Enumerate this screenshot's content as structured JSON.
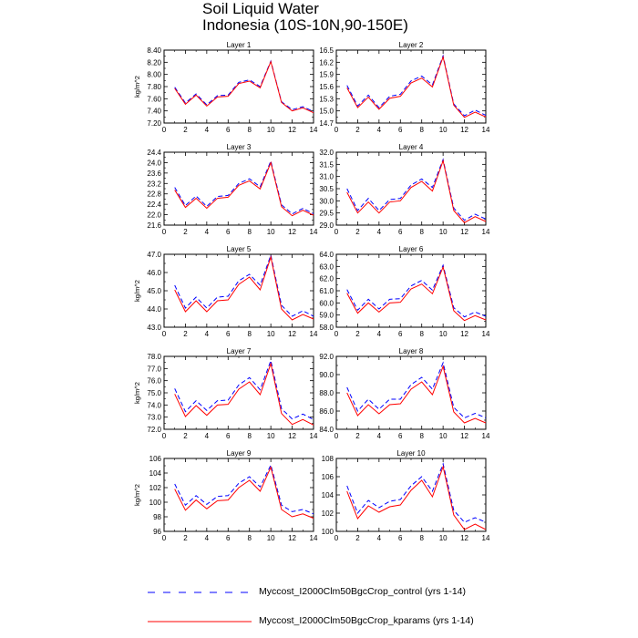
{
  "figure": {
    "title_line1": "Soil Liquid Water",
    "title_line2": "Indonesia (10S-10N,90-150E)"
  },
  "legend": {
    "entries": [
      {
        "label": "Myccost_I2000Clm50BgcCrop_control (yrs 1-14)",
        "color": "#0000ff",
        "style": "dashed"
      },
      {
        "label": "Myccost_I2000Clm50BgcCrop_kparams (yrs 1-14)",
        "color": "#ff0000",
        "style": "solid"
      }
    ]
  },
  "chart_data": [
    {
      "type": "line",
      "title": "Layer 1",
      "ylabel": "kg/m^2",
      "xlabel": "",
      "x": [
        1,
        2,
        3,
        4,
        5,
        6,
        7,
        8,
        9,
        10,
        11,
        12,
        13,
        14
      ],
      "xlim": [
        0,
        14
      ],
      "xticks": [
        "0",
        "2",
        "4",
        "6",
        "8",
        "10",
        "12",
        "14"
      ],
      "ylim": [
        7.2,
        8.4
      ],
      "yticks": [
        "7.20",
        "7.40",
        "7.60",
        "7.80",
        "8.00",
        "8.20",
        "8.40"
      ],
      "series": [
        {
          "name": "Myccost_I2000Clm50BgcCrop_control (yrs 1-14)",
          "values": [
            7.79,
            7.53,
            7.68,
            7.5,
            7.65,
            7.66,
            7.87,
            7.91,
            7.8,
            8.22,
            7.55,
            7.42,
            7.47,
            7.39
          ]
        },
        {
          "name": "Myccost_I2000Clm50BgcCrop_kparams (yrs 1-14)",
          "values": [
            7.77,
            7.51,
            7.66,
            7.48,
            7.63,
            7.64,
            7.85,
            7.89,
            7.78,
            8.21,
            7.54,
            7.4,
            7.45,
            7.37
          ]
        }
      ]
    },
    {
      "type": "line",
      "title": "Layer 2",
      "ylabel": "",
      "xlabel": "",
      "x": [
        1,
        2,
        3,
        4,
        5,
        6,
        7,
        8,
        9,
        10,
        11,
        12,
        13,
        14
      ],
      "xlim": [
        0,
        14
      ],
      "xticks": [
        "0",
        "2",
        "4",
        "6",
        "8",
        "10",
        "12",
        "14"
      ],
      "ylim": [
        14.7,
        16.5
      ],
      "yticks": [
        "14.7",
        "15.0",
        "15.3",
        "15.6",
        "15.9",
        "16.2",
        "16.5"
      ],
      "series": [
        {
          "name": "Myccost_I2000Clm50BgcCrop_control (yrs 1-14)",
          "values": [
            15.63,
            15.12,
            15.39,
            15.08,
            15.36,
            15.41,
            15.74,
            15.86,
            15.64,
            16.36,
            15.17,
            14.88,
            15.02,
            14.89
          ]
        },
        {
          "name": "Myccost_I2000Clm50BgcCrop_kparams (yrs 1-14)",
          "values": [
            15.57,
            15.08,
            15.34,
            15.04,
            15.31,
            15.36,
            15.69,
            15.81,
            15.59,
            16.33,
            15.14,
            14.84,
            14.97,
            14.85
          ]
        }
      ]
    },
    {
      "type": "line",
      "title": "Layer 3",
      "ylabel": "",
      "xlabel": "",
      "x": [
        1,
        2,
        3,
        4,
        5,
        6,
        7,
        8,
        9,
        10,
        11,
        12,
        13,
        14
      ],
      "xlim": [
        0,
        14
      ],
      "xticks": [
        "0",
        "2",
        "4",
        "6",
        "8",
        "10",
        "12",
        "14"
      ],
      "ylim": [
        21.6,
        24.4
      ],
      "yticks": [
        "21.6",
        "22.0",
        "22.4",
        "22.8",
        "23.2",
        "23.6",
        "24.0",
        "24.4"
      ],
      "series": [
        {
          "name": "Myccost_I2000Clm50BgcCrop_control (yrs 1-14)",
          "values": [
            23.05,
            22.35,
            22.72,
            22.32,
            22.7,
            22.74,
            23.2,
            23.38,
            23.07,
            24.06,
            22.38,
            22.03,
            22.24,
            22.04
          ]
        },
        {
          "name": "Myccost_I2000Clm50BgcCrop_kparams (yrs 1-14)",
          "values": [
            22.95,
            22.28,
            22.63,
            22.25,
            22.63,
            22.67,
            23.13,
            23.3,
            22.99,
            24.0,
            22.31,
            21.96,
            22.17,
            21.98
          ]
        }
      ]
    },
    {
      "type": "line",
      "title": "Layer 4",
      "ylabel": "",
      "xlabel": "",
      "x": [
        1,
        2,
        3,
        4,
        5,
        6,
        7,
        8,
        9,
        10,
        11,
        12,
        13,
        14
      ],
      "xlim": [
        0,
        14
      ],
      "xticks": [
        "0",
        "2",
        "4",
        "6",
        "8",
        "10",
        "12",
        "14"
      ],
      "ylim": [
        29.0,
        32.0
      ],
      "yticks": [
        "29.0",
        "29.5",
        "30.0",
        "30.5",
        "31.0",
        "31.5",
        "32.0"
      ],
      "series": [
        {
          "name": "Myccost_I2000Clm50BgcCrop_control (yrs 1-14)",
          "values": [
            30.5,
            29.6,
            30.1,
            29.6,
            30.05,
            30.1,
            30.65,
            30.9,
            30.55,
            31.7,
            29.7,
            29.2,
            29.45,
            29.25
          ]
        },
        {
          "name": "Myccost_I2000Clm50BgcCrop_kparams (yrs 1-14)",
          "values": [
            30.35,
            29.5,
            29.95,
            29.5,
            29.95,
            30.0,
            30.55,
            30.8,
            30.4,
            31.65,
            29.6,
            29.1,
            29.35,
            29.15
          ]
        }
      ]
    },
    {
      "type": "line",
      "title": "Layer 5",
      "ylabel": "kg/m^2",
      "xlabel": "",
      "x": [
        1,
        2,
        3,
        4,
        5,
        6,
        7,
        8,
        9,
        10,
        11,
        12,
        13,
        14
      ],
      "xlim": [
        0,
        14
      ],
      "xticks": [
        "0",
        "2",
        "4",
        "6",
        "8",
        "10",
        "12",
        "14"
      ],
      "ylim": [
        43.0,
        47.0
      ],
      "yticks": [
        "43.0",
        "44.0",
        "45.0",
        "46.0",
        "47.0"
      ],
      "series": [
        {
          "name": "Myccost_I2000Clm50BgcCrop_control (yrs 1-14)",
          "values": [
            45.3,
            44.05,
            44.65,
            44.05,
            44.65,
            44.7,
            45.55,
            45.9,
            45.3,
            46.95,
            44.2,
            43.6,
            43.9,
            43.6
          ]
        },
        {
          "name": "Myccost_I2000Clm50BgcCrop_kparams (yrs 1-14)",
          "values": [
            45.05,
            43.85,
            44.45,
            43.85,
            44.45,
            44.5,
            45.35,
            45.75,
            45.05,
            46.85,
            44.0,
            43.4,
            43.7,
            43.45
          ]
        }
      ]
    },
    {
      "type": "line",
      "title": "Layer 6",
      "ylabel": "",
      "xlabel": "",
      "x": [
        1,
        2,
        3,
        4,
        5,
        6,
        7,
        8,
        9,
        10,
        11,
        12,
        13,
        14
      ],
      "xlim": [
        0,
        14
      ],
      "xticks": [
        "0",
        "2",
        "4",
        "6",
        "8",
        "10",
        "12",
        "14"
      ],
      "ylim": [
        58.0,
        64.0
      ],
      "yticks": [
        "58.0",
        "59.0",
        "60.0",
        "61.0",
        "62.0",
        "63.0",
        "64.0"
      ],
      "series": [
        {
          "name": "Myccost_I2000Clm50BgcCrop_control (yrs 1-14)",
          "values": [
            61.1,
            59.4,
            60.3,
            59.5,
            60.3,
            60.35,
            61.4,
            61.85,
            61.05,
            63.1,
            59.6,
            58.85,
            59.25,
            58.9
          ]
        },
        {
          "name": "Myccost_I2000Clm50BgcCrop_kparams (yrs 1-14)",
          "values": [
            60.8,
            59.15,
            60.0,
            59.25,
            60.0,
            60.05,
            61.15,
            61.55,
            60.75,
            62.95,
            59.35,
            58.55,
            58.95,
            58.6
          ]
        }
      ]
    },
    {
      "type": "line",
      "title": "Layer 7",
      "ylabel": "kg/m^2",
      "xlabel": "",
      "x": [
        1,
        2,
        3,
        4,
        5,
        6,
        7,
        8,
        9,
        10,
        11,
        12,
        13,
        14
      ],
      "xlim": [
        0,
        14
      ],
      "xticks": [
        "0",
        "2",
        "4",
        "6",
        "8",
        "10",
        "12",
        "14"
      ],
      "ylim": [
        72.0,
        78.0
      ],
      "yticks": [
        "72.0",
        "73.0",
        "74.0",
        "75.0",
        "76.0",
        "77.0",
        "78.0"
      ],
      "series": [
        {
          "name": "Myccost_I2000Clm50BgcCrop_control (yrs 1-14)",
          "values": [
            75.35,
            73.45,
            74.35,
            73.55,
            74.35,
            74.4,
            75.65,
            76.25,
            75.25,
            77.65,
            73.7,
            72.85,
            73.25,
            72.8
          ]
        },
        {
          "name": "Myccost_I2000Clm50BgcCrop_kparams (yrs 1-14)",
          "values": [
            74.9,
            73.05,
            73.95,
            73.15,
            74.0,
            74.05,
            75.3,
            75.9,
            74.85,
            77.4,
            73.3,
            72.4,
            72.8,
            72.35
          ]
        }
      ]
    },
    {
      "type": "line",
      "title": "Layer 8",
      "ylabel": "",
      "xlabel": "",
      "x": [
        1,
        2,
        3,
        4,
        5,
        6,
        7,
        8,
        9,
        10,
        11,
        12,
        13,
        14
      ],
      "xlim": [
        0,
        14
      ],
      "xticks": [
        "0",
        "2",
        "4",
        "6",
        "8",
        "10",
        "12",
        "14"
      ],
      "ylim": [
        84.0,
        92.0
      ],
      "yticks": [
        "84.0",
        "86.0",
        "88.0",
        "90.0",
        "92.0"
      ],
      "series": [
        {
          "name": "Myccost_I2000Clm50BgcCrop_control (yrs 1-14)",
          "values": [
            88.6,
            86.0,
            87.3,
            86.2,
            87.3,
            87.3,
            88.9,
            89.7,
            88.4,
            91.3,
            86.4,
            85.25,
            85.75,
            85.25
          ]
        },
        {
          "name": "Myccost_I2000Clm50BgcCrop_kparams (yrs 1-14)",
          "values": [
            88.0,
            85.5,
            86.7,
            85.7,
            86.7,
            86.8,
            88.4,
            89.2,
            87.8,
            90.9,
            85.9,
            84.7,
            85.2,
            84.7
          ]
        }
      ]
    },
    {
      "type": "line",
      "title": "Layer 9",
      "ylabel": "kg/m^2",
      "xlabel": "",
      "x": [
        1,
        2,
        3,
        4,
        5,
        6,
        7,
        8,
        9,
        10,
        11,
        12,
        13,
        14
      ],
      "xlim": [
        0,
        14
      ],
      "xticks": [
        "0",
        "2",
        "4",
        "6",
        "8",
        "10",
        "12",
        "14"
      ],
      "ylim": [
        96,
        106
      ],
      "yticks": [
        "96",
        "98",
        "100",
        "102",
        "104",
        "106"
      ],
      "series": [
        {
          "name": "Myccost_I2000Clm50BgcCrop_control (yrs 1-14)",
          "values": [
            102.5,
            99.6,
            100.9,
            99.7,
            100.8,
            100.9,
            102.6,
            103.5,
            102.1,
            105.1,
            99.6,
            98.7,
            99.0,
            98.4
          ]
        },
        {
          "name": "Myccost_I2000Clm50BgcCrop_kparams (yrs 1-14)",
          "values": [
            101.8,
            98.9,
            100.3,
            99.1,
            100.2,
            100.3,
            102.0,
            103.0,
            101.5,
            104.8,
            99.0,
            98.0,
            98.4,
            97.8
          ]
        }
      ]
    },
    {
      "type": "line",
      "title": "Layer 10",
      "ylabel": "",
      "xlabel": "",
      "x": [
        1,
        2,
        3,
        4,
        5,
        6,
        7,
        8,
        9,
        10,
        11,
        12,
        13,
        14
      ],
      "xlim": [
        0,
        14
      ],
      "xticks": [
        "0",
        "2",
        "4",
        "6",
        "8",
        "10",
        "12",
        "14"
      ],
      "ylim": [
        100,
        108
      ],
      "yticks": [
        "100",
        "102",
        "104",
        "106",
        "108"
      ],
      "series": [
        {
          "name": "Myccost_I2000Clm50BgcCrop_control (yrs 1-14)",
          "values": [
            105.0,
            102.0,
            103.4,
            102.6,
            103.3,
            103.5,
            105.0,
            106.0,
            104.4,
            107.4,
            102.3,
            101.0,
            101.5,
            101.0
          ]
        },
        {
          "name": "Myccost_I2000Clm50BgcCrop_kparams (yrs 1-14)",
          "values": [
            104.4,
            101.4,
            102.8,
            102.1,
            102.7,
            102.9,
            104.5,
            105.6,
            103.8,
            107.1,
            101.8,
            100.2,
            100.8,
            100.2
          ]
        }
      ]
    }
  ]
}
